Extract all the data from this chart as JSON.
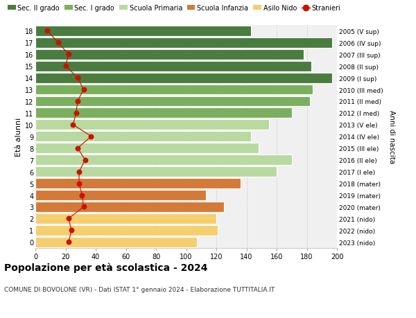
{
  "ages": [
    18,
    17,
    16,
    15,
    14,
    13,
    12,
    11,
    10,
    9,
    8,
    7,
    6,
    5,
    4,
    3,
    2,
    1,
    0
  ],
  "right_labels": [
    "2005 (V sup)",
    "2006 (IV sup)",
    "2007 (III sup)",
    "2008 (II sup)",
    "2009 (I sup)",
    "2010 (III med)",
    "2011 (II med)",
    "2012 (I med)",
    "2013 (V ele)",
    "2014 (IV ele)",
    "2015 (III ele)",
    "2016 (II ele)",
    "2017 (I ele)",
    "2018 (mater)",
    "2019 (mater)",
    "2020 (mater)",
    "2021 (nido)",
    "2022 (nido)",
    "2023 (nido)"
  ],
  "bar_values": [
    143,
    197,
    178,
    183,
    197,
    184,
    182,
    170,
    155,
    143,
    148,
    170,
    160,
    136,
    113,
    125,
    120,
    121,
    107
  ],
  "bar_colors": [
    "#4a7c3f",
    "#4a7c3f",
    "#4a7c3f",
    "#4a7c3f",
    "#4a7c3f",
    "#7aaf5e",
    "#7aaf5e",
    "#7aaf5e",
    "#b8d9a0",
    "#b8d9a0",
    "#b8d9a0",
    "#b8d9a0",
    "#b8d9a0",
    "#d47a38",
    "#d47a38",
    "#d47a38",
    "#f5ce70",
    "#f5ce70",
    "#f5ce70"
  ],
  "stranieri_values": [
    8,
    15,
    22,
    20,
    28,
    32,
    28,
    27,
    25,
    37,
    28,
    33,
    29,
    29,
    31,
    32,
    22,
    24,
    22
  ],
  "legend_labels": [
    "Sec. II grado",
    "Sec. I grado",
    "Scuola Primaria",
    "Scuola Infanzia",
    "Asilo Nido",
    "Stranieri"
  ],
  "legend_colors": [
    "#4a7c3f",
    "#7aaf5e",
    "#b8d9a0",
    "#d47a38",
    "#f5ce70",
    "#cc1100"
  ],
  "title": "Popolazione per età scolastica - 2024",
  "subtitle": "COMUNE DI BOVOLONE (VR) - Dati ISTAT 1° gennaio 2024 - Elaborazione TUTTITALIA.IT",
  "ylabel_left": "Età alunni",
  "ylabel_right": "Anni di nascita",
  "xlim_max": 200,
  "bg_color": "#f0f0f0"
}
